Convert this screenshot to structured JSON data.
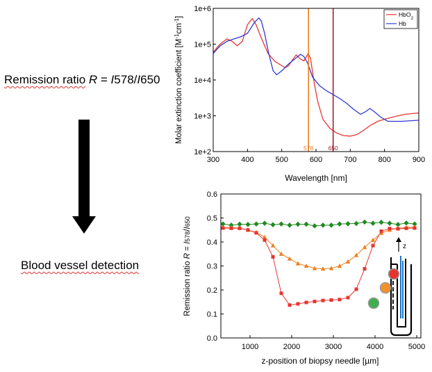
{
  "left_panel": {
    "ratio_label": "Remission ratio",
    "ratio_var": "R",
    "ratio_eq": " = ",
    "ratio_i1": "I",
    "ratio_n1": "578",
    "ratio_slash": "/",
    "ratio_i2": "I",
    "ratio_n2": "650",
    "detection_text": "Blood vessel detection"
  },
  "chart_data": [
    {
      "type": "line",
      "title": "",
      "xlabel": "Wavelength [nm]",
      "ylabel_main": "Molar extinction coefficient [M",
      "ylabel_sup1": "-1",
      "ylabel_mid": "cm",
      "ylabel_sup2": "-1",
      "ylabel_end": "]",
      "yscale": "log",
      "xlim": [
        300,
        900
      ],
      "ylim": [
        100,
        1000000
      ],
      "xticks": [
        "300",
        "400",
        "500",
        "600",
        "700",
        "800",
        "900"
      ],
      "yticks": [
        {
          "base": "1e+2",
          "value": 100
        },
        {
          "base": "1e+3",
          "value": 1000
        },
        {
          "base": "1e+4",
          "value": 10000
        },
        {
          "base": "1e+5",
          "value": 100000
        },
        {
          "base": "1e+6",
          "value": 1000000
        }
      ],
      "legend_position": "top-right",
      "series": [
        {
          "name": "HbO",
          "name_sub": "2",
          "color": "#e8342f",
          "points": [
            [
              300,
              60000
            ],
            [
              320,
              100000
            ],
            [
              340,
              140000
            ],
            [
              355,
              120000
            ],
            [
              370,
              90000
            ],
            [
              385,
              120000
            ],
            [
              400,
              350000
            ],
            [
              414,
              520000
            ],
            [
              425,
              350000
            ],
            [
              440,
              150000
            ],
            [
              460,
              55000
            ],
            [
              480,
              33000
            ],
            [
              500,
              25000
            ],
            [
              510,
              22000
            ],
            [
              520,
              25000
            ],
            [
              530,
              35000
            ],
            [
              542,
              50000
            ],
            [
              555,
              38000
            ],
            [
              565,
              34000
            ],
            [
              577,
              55000
            ],
            [
              584,
              40000
            ],
            [
              595,
              8000
            ],
            [
              605,
              2500
            ],
            [
              620,
              800
            ],
            [
              640,
              450
            ],
            [
              660,
              330
            ],
            [
              680,
              280
            ],
            [
              700,
              270
            ],
            [
              720,
              300
            ],
            [
              740,
              400
            ],
            [
              760,
              550
            ],
            [
              780,
              700
            ],
            [
              800,
              800
            ],
            [
              830,
              950
            ],
            [
              860,
              1100
            ],
            [
              900,
              1200
            ]
          ]
        },
        {
          "name": "Hb",
          "name_sub": "",
          "color": "#2f38d6",
          "points": [
            [
              300,
              55000
            ],
            [
              320,
              90000
            ],
            [
              340,
              120000
            ],
            [
              360,
              140000
            ],
            [
              380,
              160000
            ],
            [
              400,
              200000
            ],
            [
              420,
              400000
            ],
            [
              433,
              540000
            ],
            [
              440,
              450000
            ],
            [
              450,
              200000
            ],
            [
              462,
              55000
            ],
            [
              475,
              18000
            ],
            [
              485,
              14000
            ],
            [
              500,
              18000
            ],
            [
              520,
              28000
            ],
            [
              540,
              40000
            ],
            [
              555,
              52000
            ],
            [
              565,
              45000
            ],
            [
              575,
              30000
            ],
            [
              590,
              12000
            ],
            [
              610,
              7000
            ],
            [
              630,
              5000
            ],
            [
              650,
              3900
            ],
            [
              670,
              3000
            ],
            [
              690,
              2200
            ],
            [
              710,
              1500
            ],
            [
              730,
              1100
            ],
            [
              745,
              1300
            ],
            [
              757,
              1600
            ],
            [
              770,
              1300
            ],
            [
              790,
              900
            ],
            [
              810,
              700
            ],
            [
              850,
              700
            ],
            [
              900,
              750
            ]
          ]
        }
      ],
      "markers": [
        {
          "label": "578",
          "x": 578,
          "color": "#f07d1e"
        },
        {
          "label": "650",
          "x": 650,
          "color": "#a31f2c"
        }
      ]
    },
    {
      "type": "line",
      "title": "",
      "xlabel": "z-position of biopsy needle [µm]",
      "ylabel_main": "Remission ratio ",
      "ylabel_var": "R",
      "ylabel_eq": " = ",
      "ylabel_i1": "I",
      "ylabel_n1": "578",
      "ylabel_slash": "/",
      "ylabel_i2": "I",
      "ylabel_n2": "650",
      "xlim": [
        300,
        5100
      ],
      "ylim": [
        0,
        0.6
      ],
      "xticks": [
        1000,
        2000,
        3000,
        4000,
        5000
      ],
      "yticks": [
        "0.0",
        "0.1",
        "0.2",
        "0.3",
        "0.4",
        "0.5",
        "0.6"
      ],
      "series": [
        {
          "color": "#1f8a1f",
          "marker": "diamond",
          "x": [
            350,
            550,
            750,
            950,
            1150,
            1350,
            1550,
            1750,
            1950,
            2150,
            2350,
            2550,
            2750,
            2950,
            3150,
            3350,
            3550,
            3750,
            3950,
            4150,
            4350,
            4550,
            4750,
            4950
          ],
          "y": [
            0.475,
            0.47,
            0.474,
            0.473,
            0.475,
            0.478,
            0.472,
            0.475,
            0.47,
            0.474,
            0.474,
            0.467,
            0.47,
            0.47,
            0.475,
            0.476,
            0.477,
            0.483,
            0.478,
            0.482,
            0.478,
            0.473,
            0.479,
            0.475
          ]
        },
        {
          "color": "#f07d1e",
          "marker": "triangle",
          "x": [
            350,
            550,
            750,
            950,
            1150,
            1350,
            1550,
            1750,
            1950,
            2150,
            2350,
            2550,
            2750,
            2950,
            3150,
            3350,
            3550,
            3750,
            3950,
            4150,
            4350,
            4550,
            4750,
            4950
          ],
          "y": [
            0.46,
            0.46,
            0.458,
            0.45,
            0.44,
            0.42,
            0.385,
            0.35,
            0.33,
            0.31,
            0.3,
            0.29,
            0.288,
            0.29,
            0.3,
            0.318,
            0.345,
            0.378,
            0.408,
            0.437,
            0.45,
            0.457,
            0.46,
            0.462
          ]
        },
        {
          "color": "#e8342f",
          "marker": "square",
          "x": [
            350,
            550,
            750,
            950,
            1150,
            1350,
            1550,
            1750,
            1950,
            2150,
            2350,
            2550,
            2750,
            2950,
            3150,
            3350,
            3550,
            3750,
            3950,
            4150,
            4350,
            4550,
            4750,
            4950
          ],
          "y": [
            0.458,
            0.457,
            0.457,
            0.45,
            0.438,
            0.408,
            0.338,
            0.186,
            0.137,
            0.142,
            0.148,
            0.152,
            0.156,
            0.158,
            0.16,
            0.168,
            0.203,
            0.288,
            0.385,
            0.445,
            0.456,
            0.455,
            0.457,
            0.458
          ]
        }
      ],
      "inset": {
        "axis_label": "z",
        "dot_colors": [
          "#e8342f",
          "#f0912a",
          "#3fae4e"
        ]
      }
    }
  ]
}
